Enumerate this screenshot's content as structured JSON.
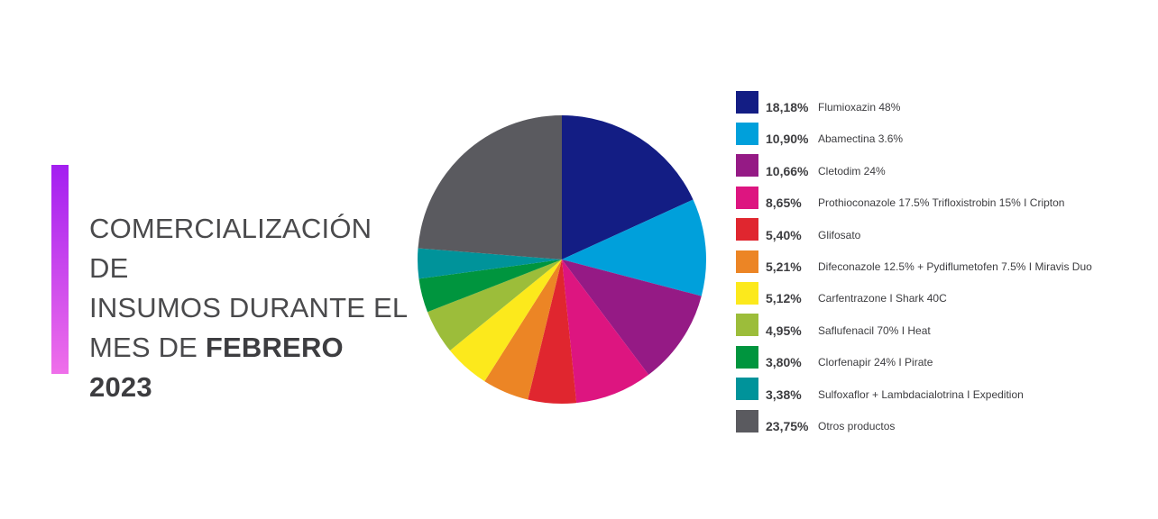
{
  "title": {
    "line1": "COMERCIALIZACIÓN DE",
    "line2": "INSUMOS DURANTE EL",
    "line3_prefix": "MES DE ",
    "line3_bold": "FEBRERO 2023"
  },
  "colors": {
    "accent_gradient_top": "#a31ff0",
    "accent_gradient_bottom": "#ef6fea"
  },
  "chart_data": {
    "type": "pie",
    "title": "COMERCIALIZACIÓN DE INSUMOS DURANTE EL MES DE FEBRERO 2023",
    "start": "12 o'clock, clockwise",
    "legend_position": "right",
    "slices": [
      {
        "label": "Flumioxazin 48%",
        "value": 18.18,
        "display": "18,18%",
        "color": "#131d84"
      },
      {
        "label": "Abamectina 3.6%",
        "value": 10.9,
        "display": "10,90%",
        "color": "#00a0db"
      },
      {
        "label": "Cletodim 24%",
        "value": 10.66,
        "display": "10,66%",
        "color": "#951a85"
      },
      {
        "label": "Prothioconazole 17.5% Trifloxistrobin 15% I Cripton",
        "value": 8.65,
        "display": "8,65%",
        "color": "#dd1580"
      },
      {
        "label": "Glifosato",
        "value": 5.4,
        "display": "5,40%",
        "color": "#e0262f"
      },
      {
        "label": "Difeconazole 12.5% + Pydiflumetofen 7.5% I Miravis Duo",
        "value": 5.21,
        "display": "5,21%",
        "color": "#ec8525"
      },
      {
        "label": "Carfentrazone I Shark 40C",
        "value": 5.12,
        "display": "5,12%",
        "color": "#fce91c"
      },
      {
        "label": "Saflufenacil 70% I Heat",
        "value": 4.95,
        "display": "4,95%",
        "color": "#9cbd3a"
      },
      {
        "label": "Clorfenapir 24% I Pirate",
        "value": 3.8,
        "display": "3,80%",
        "color": "#00953e"
      },
      {
        "label": "Sulfoxaflor + Lambdacialotrina I Expedition",
        "value": 3.38,
        "display": "3,38%",
        "color": "#00939a"
      },
      {
        "label": "Otros productos",
        "value": 23.75,
        "display": "23,75%",
        "color": "#5a5a5f"
      }
    ]
  }
}
